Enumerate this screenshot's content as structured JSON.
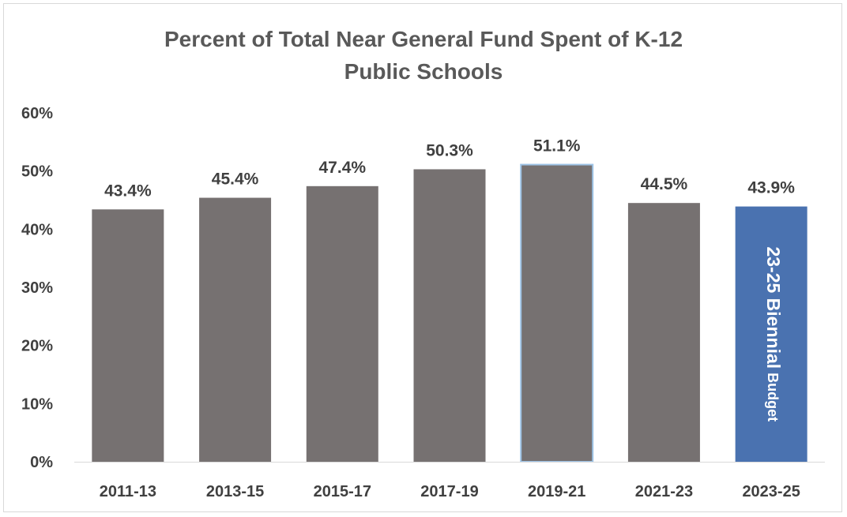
{
  "chart_data": {
    "type": "bar",
    "title_lines": [
      "Percent of Total Near General Fund Spent of K-12",
      "Public Schools"
    ],
    "categories": [
      "2011-13",
      "2013-15",
      "2015-17",
      "2017-19",
      "2019-21",
      "2021-23",
      "2023-25"
    ],
    "values": [
      43.4,
      45.4,
      47.4,
      50.3,
      51.1,
      44.5,
      43.9
    ],
    "data_labels": [
      "43.4%",
      "45.4%",
      "47.4%",
      "50.3%",
      "51.1%",
      "44.5%",
      "43.9%"
    ],
    "y_ticks": [
      0,
      10,
      20,
      30,
      40,
      50,
      60
    ],
    "y_tick_labels": [
      "0%",
      "10%",
      "20%",
      "30%",
      "40%",
      "50%",
      "60%"
    ],
    "ylim": [
      0,
      60
    ],
    "xlabel": "",
    "ylabel": "",
    "grid": false,
    "legend": "none",
    "colors": {
      "bar": "#767171",
      "highlight_bar": "#4a72b0",
      "outlined_bar_border": "#9dc3e6",
      "text": "#404040",
      "title": "#595959",
      "axis": "#d9d9d9"
    },
    "highlight_index": 6,
    "outlined_index": 4,
    "annotation": {
      "bar_index": 6,
      "text_bold": "23-25 Biennial",
      "text_regular": " Budget"
    }
  }
}
